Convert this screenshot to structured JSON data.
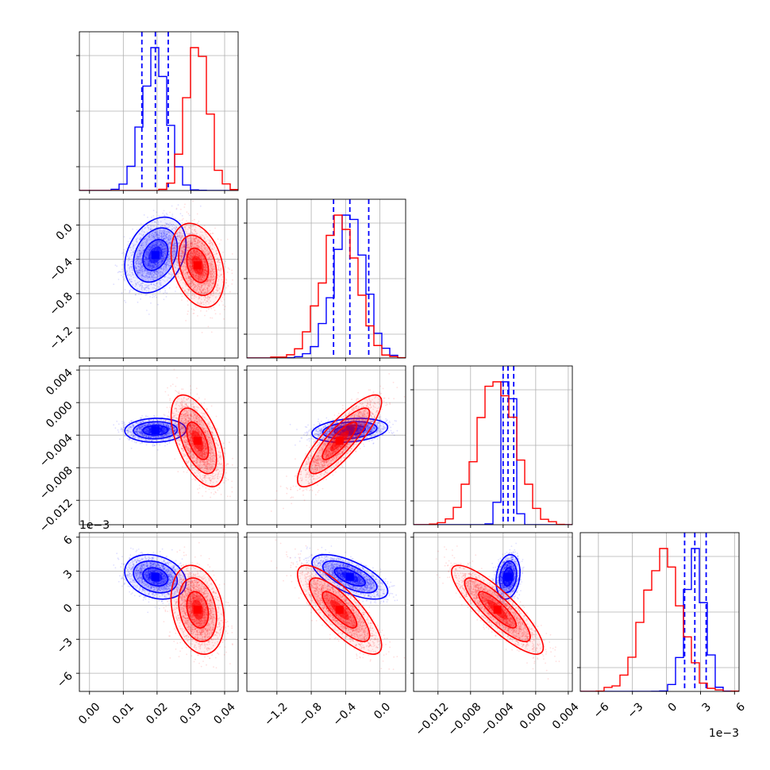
{
  "chart_data": {
    "type": "corner",
    "parameters": [
      {
        "ticks": [
          0.0,
          0.01,
          0.02,
          0.03,
          0.04
        ],
        "tick_labels": [
          "0.00",
          "0.01",
          "0.02",
          "0.03",
          "0.04"
        ],
        "range": [
          -0.003,
          0.044
        ]
      },
      {
        "ticks": [
          -1.2,
          -0.8,
          -0.4,
          0.0
        ],
        "tick_labels": [
          "−1.2",
          "−0.8",
          "−0.4",
          "0.0"
        ],
        "range": [
          -1.55,
          0.3
        ]
      },
      {
        "ticks": [
          -0.012,
          -0.008,
          -0.004,
          0.0,
          0.004
        ],
        "tick_labels": [
          "−0.012",
          "−0.008",
          "−0.004",
          "0.000",
          "0.004"
        ],
        "range": [
          -0.015,
          0.0045
        ]
      },
      {
        "ticks": [
          -6,
          -3,
          0,
          3,
          6
        ],
        "tick_labels": [
          "−6",
          "−3",
          "0",
          "3",
          "6"
        ],
        "range": [
          -7.6,
          6.4
        ],
        "multiplier_label": "1e−3"
      }
    ],
    "series": [
      {
        "name": "blue",
        "color": "#0000ff",
        "mean": [
          0.0195,
          -0.35,
          -0.0034,
          2.5
        ],
        "std": [
          0.0037,
          0.18,
          0.0006,
          0.8
        ],
        "quantiles": [
          [
            0.0155,
            0.0195,
            0.0233
          ],
          [
            -0.54,
            -0.35,
            -0.13
          ],
          [
            -0.004,
            -0.0034,
            -0.0027
          ],
          [
            1.6,
            2.5,
            3.5
          ]
        ],
        "corr": [
          [
            1,
            0.3,
            0.05,
            -0.25
          ],
          [
            0.3,
            1,
            0.25,
            -0.65
          ],
          [
            0.05,
            0.25,
            1,
            0.2
          ],
          [
            -0.25,
            -0.65,
            0.2,
            1
          ]
        ]
      },
      {
        "name": "red",
        "color": "#ff0000",
        "mean": [
          0.032,
          -0.47,
          -0.0047,
          -0.4
        ],
        "std": [
          0.0032,
          0.2,
          0.0023,
          1.6
        ],
        "quantiles": [],
        "corr": [
          [
            1,
            -0.3,
            -0.55,
            -0.25
          ],
          [
            -0.3,
            1,
            0.85,
            -0.8
          ],
          [
            -0.55,
            0.85,
            1,
            -0.85
          ],
          [
            -0.25,
            -0.8,
            -0.85,
            1
          ]
        ]
      }
    ]
  }
}
